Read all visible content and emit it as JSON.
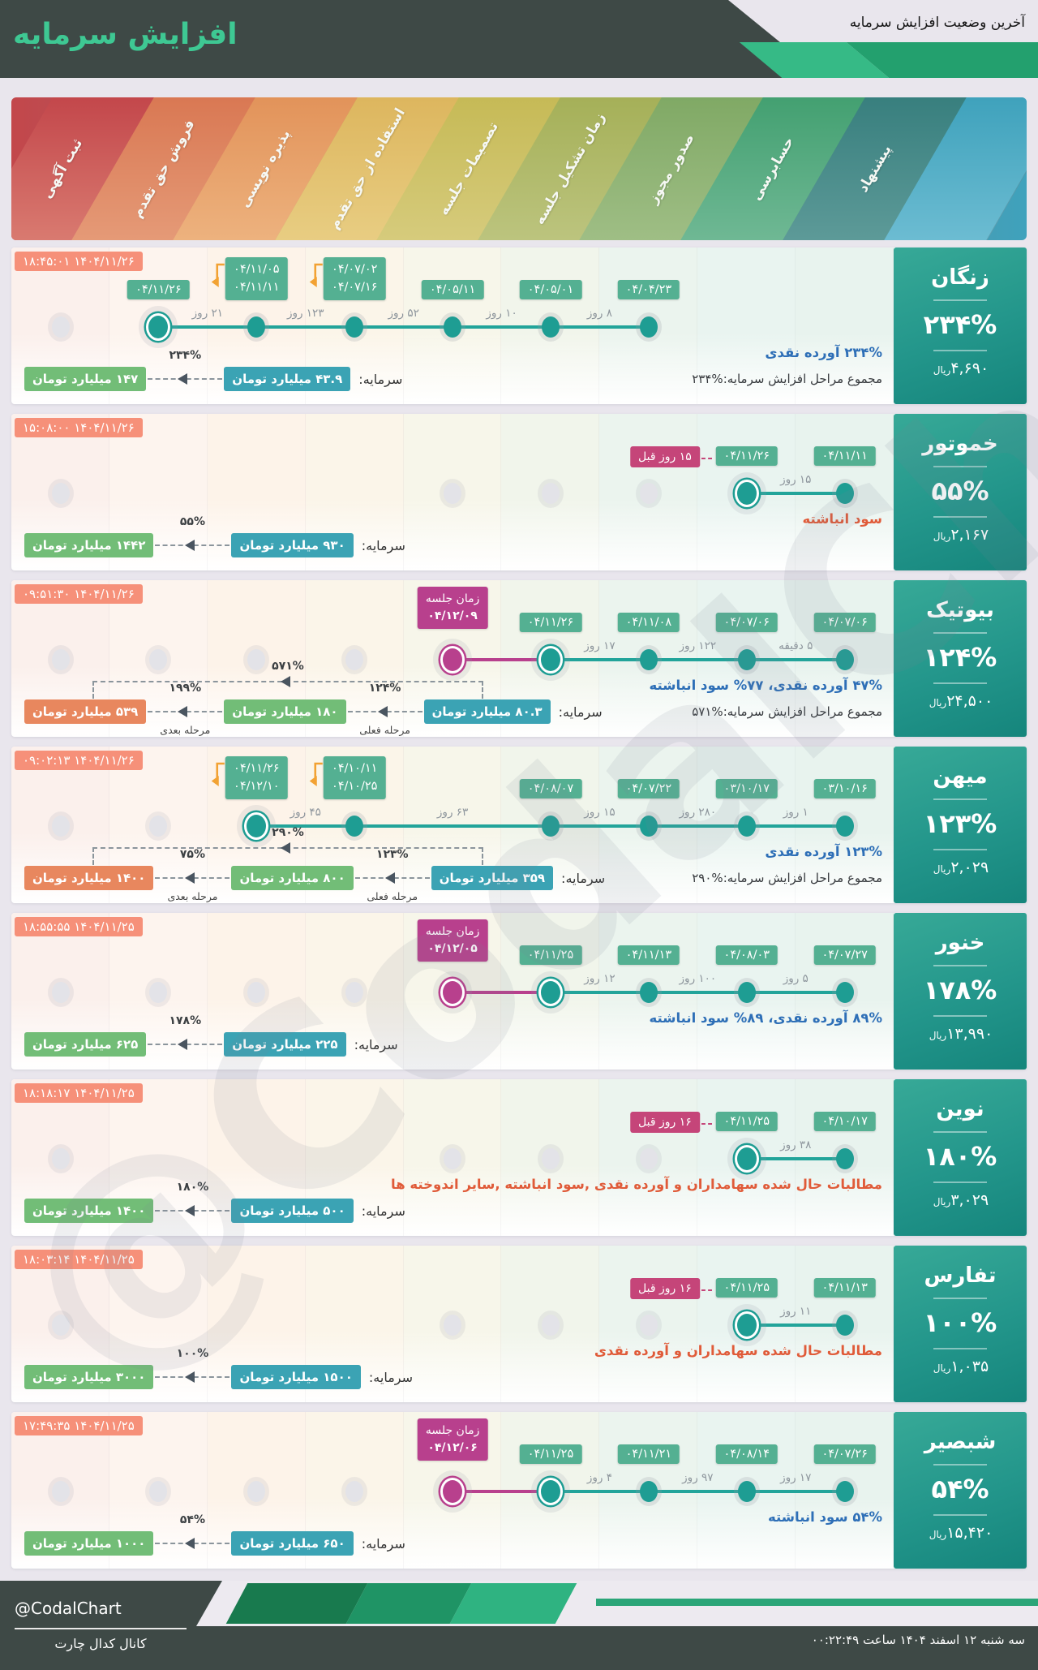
{
  "header": {
    "brand_title": "افزایش سرمایه",
    "page_title": "آخرین وضعیت افزایش سرمایه"
  },
  "watermark": "@CodalChart",
  "stages": [
    "ثبت آگهی",
    "فروش حق تقدم",
    "پذیره نویسی",
    "استفاده از حق تقدم",
    "تصمیمات جلسه",
    "زمان تشکیل جلسه",
    "صدور مجوز",
    "حسابرسی",
    "پیشنهاد",
    ""
  ],
  "labels": {
    "capital": "سرمایه:",
    "unit_billion": "میلیارد تومان",
    "stage_current": "مرحله فعلی",
    "stage_next": "مرحله بعدی",
    "total_prefix": "مجموع مراحل افزایش سرمایه:",
    "meeting": "زمان جلسه",
    "rial_unit": "ریال"
  },
  "companies": [
    {
      "name": "زنگان",
      "timestamp": "۱۴۰۴/۱۱/۲۶ ۱۸:۴۵:۰۱",
      "percent": "۲۳۴%",
      "rial": "۴,۶۹۰",
      "desc": {
        "text": "۲۳۴% آورده نقدی",
        "tone": "blue"
      },
      "total_pct": "۲۳۴%",
      "gray_cols": [
        1
      ],
      "meeting": null,
      "current": {
        "col": 2,
        "dates": [
          "۰۴/۱۱/۲۶"
        ],
        "ago": null
      },
      "nodes": [
        {
          "col": 3,
          "dates": [
            "۰۴/۱۱/۰۵",
            "۰۴/۱۱/۱۱"
          ]
        },
        {
          "col": 4,
          "dates": [
            "۰۴/۰۷/۰۲",
            "۰۴/۰۷/۱۶"
          ]
        },
        {
          "col": 5,
          "dates": [
            "۰۴/۰۵/۱۱"
          ]
        },
        {
          "col": 6,
          "dates": [
            "۰۴/۰۵/۰۱"
          ]
        },
        {
          "col": 7,
          "dates": [
            "۰۴/۰۴/۲۳"
          ]
        }
      ],
      "line": {
        "from": 2,
        "to": 7
      },
      "mline": null,
      "days": [
        [
          2,
          3,
          "۲۱ روز"
        ],
        [
          3,
          4,
          "۱۲۳ روز"
        ],
        [
          4,
          5,
          "۵۲ روز"
        ],
        [
          5,
          6,
          "۱۰ روز"
        ],
        [
          6,
          7,
          "۸ روز"
        ]
      ],
      "chain": {
        "type": "simple",
        "from": "۴۳.۹",
        "to": "۱۴۷",
        "pct": "۲۳۴%"
      }
    },
    {
      "name": "خموتور",
      "timestamp": "۱۴۰۴/۱۱/۲۶ ۱۵:۰۸:۰۰",
      "percent": "۵۵%",
      "rial": "۲,۱۶۷",
      "desc": {
        "text": "سود انباشته",
        "tone": "red"
      },
      "total_pct": null,
      "gray_cols": [
        1,
        5,
        6,
        7
      ],
      "meeting": null,
      "current": {
        "col": 8,
        "dates": [
          "۰۴/۱۱/۲۶"
        ],
        "ago": "۱۵ روز قبل"
      },
      "nodes": [
        {
          "col": 9,
          "dates": [
            "۰۴/۱۱/۱۱"
          ]
        }
      ],
      "line": {
        "from": 8,
        "to": 9
      },
      "mline": null,
      "days": [
        [
          8,
          9,
          "۱۵ روز"
        ]
      ],
      "chain": {
        "type": "simple",
        "from": "۹۳۰",
        "to": "۱۴۴۲",
        "pct": "۵۵%"
      }
    },
    {
      "name": "بیوتیک",
      "timestamp": "۱۴۰۴/۱۱/۲۶ ۰۹:۵۱:۳۰",
      "percent": "۱۲۴%",
      "rial": "۲۴,۵۰۰",
      "desc": {
        "text": "۴۷% آورده نقدی، ۷۷% سود انباشته",
        "tone": "blue"
      },
      "total_pct": "۵۷۱%",
      "gray_cols": [
        1,
        2,
        3,
        4
      ],
      "meeting": {
        "col": 5,
        "date": "۰۴/۱۲/۰۹"
      },
      "current": {
        "col": 6,
        "dates": [
          "۰۴/۱۱/۲۶"
        ],
        "ago": null
      },
      "nodes": [
        {
          "col": 7,
          "dates": [
            "۰۴/۱۱/۰۸"
          ]
        },
        {
          "col": 8,
          "dates": [
            "۰۴/۰۷/۰۶"
          ]
        },
        {
          "col": 9,
          "dates": [
            "۰۴/۰۷/۰۶"
          ]
        }
      ],
      "line": {
        "from": 6,
        "to": 9
      },
      "mline": {
        "from": 5,
        "to": 6
      },
      "days": [
        [
          6,
          7,
          "۱۷ روز"
        ],
        [
          7,
          8,
          "۱۲۲ روز"
        ],
        [
          8,
          9,
          "۵ دقیقه"
        ]
      ],
      "chain": {
        "type": "triple",
        "from": "۸۰.۳",
        "mid": "۱۸۰",
        "to": "۵۳۹",
        "pct1": "۱۲۴%",
        "pct2": "۱۹۹%",
        "overall": "۵۷۱%"
      }
    },
    {
      "name": "میهن",
      "timestamp": "۱۴۰۴/۱۱/۲۶ ۰۹:۰۲:۱۳",
      "percent": "۱۲۳%",
      "rial": "۲,۰۲۹",
      "desc": {
        "text": "۱۲۳% آورده نقدی",
        "tone": "blue"
      },
      "total_pct": "۲۹۰%",
      "gray_cols": [
        1,
        2
      ],
      "meeting": null,
      "current": {
        "col": 3,
        "dates": [
          "۰۴/۱۱/۲۶",
          "۰۴/۱۲/۱۰"
        ],
        "ago": null
      },
      "nodes": [
        {
          "col": 4,
          "dates": [
            "۰۴/۱۰/۱۱",
            "۰۴/۱۰/۲۵"
          ]
        },
        {
          "col": 6,
          "dates": [
            "۰۴/۰۸/۰۷"
          ]
        },
        {
          "col": 7,
          "dates": [
            "۰۴/۰۷/۲۲"
          ]
        },
        {
          "col": 8,
          "dates": [
            "۰۳/۱۰/۱۷"
          ]
        },
        {
          "col": 9,
          "dates": [
            "۰۳/۱۰/۱۶"
          ]
        }
      ],
      "line": {
        "from": 3,
        "to": 9
      },
      "mline": null,
      "days": [
        [
          3,
          4,
          "۴۵ روز"
        ],
        [
          4,
          6,
          "۶۳ روز"
        ],
        [
          6,
          7,
          "۱۵ روز"
        ],
        [
          7,
          8,
          "۲۸۰ روز"
        ],
        [
          8,
          9,
          "۱ روز"
        ]
      ],
      "chain": {
        "type": "triple",
        "from": "۳۵۹",
        "mid": "۸۰۰",
        "to": "۱۴۰۰",
        "pct1": "۱۲۳%",
        "pct2": "۷۵%",
        "overall": "۲۹۰%"
      }
    },
    {
      "name": "خنور",
      "timestamp": "۱۴۰۴/۱۱/۲۵ ۱۸:۵۵:۵۵",
      "percent": "۱۷۸%",
      "rial": "۱۳,۹۹۰",
      "desc": {
        "text": "۸۹% آورده نقدی، ۸۹% سود انباشته",
        "tone": "blue"
      },
      "total_pct": null,
      "gray_cols": [
        1,
        2,
        3,
        4
      ],
      "meeting": {
        "col": 5,
        "date": "۰۴/۱۲/۰۵"
      },
      "current": {
        "col": 6,
        "dates": [
          "۰۴/۱۱/۲۵"
        ],
        "ago": null
      },
      "nodes": [
        {
          "col": 7,
          "dates": [
            "۰۴/۱۱/۱۳"
          ]
        },
        {
          "col": 8,
          "dates": [
            "۰۴/۰۸/۰۳"
          ]
        },
        {
          "col": 9,
          "dates": [
            "۰۴/۰۷/۲۷"
          ]
        }
      ],
      "line": {
        "from": 6,
        "to": 9
      },
      "mline": {
        "from": 5,
        "to": 6
      },
      "days": [
        [
          6,
          7,
          "۱۲ روز"
        ],
        [
          7,
          8,
          "۱۰۰ روز"
        ],
        [
          8,
          9,
          "۵ روز"
        ]
      ],
      "chain": {
        "type": "simple",
        "from": "۲۲۵",
        "to": "۶۲۵",
        "pct": "۱۷۸%"
      }
    },
    {
      "name": "نوین",
      "timestamp": "۱۴۰۴/۱۱/۲۵ ۱۸:۱۸:۱۷",
      "percent": "۱۸۰%",
      "rial": "۳,۰۲۹",
      "desc": {
        "text": "مطالبات حال شده سهامداران و آورده نقدی ,سود انباشته ,سایر اندوخته ها",
        "tone": "red"
      },
      "total_pct": null,
      "gray_cols": [
        1,
        5,
        6,
        7
      ],
      "meeting": null,
      "current": {
        "col": 8,
        "dates": [
          "۰۴/۱۱/۲۵"
        ],
        "ago": "۱۶ روز قبل"
      },
      "nodes": [
        {
          "col": 9,
          "dates": [
            "۰۴/۱۰/۱۷"
          ]
        }
      ],
      "line": {
        "from": 8,
        "to": 9
      },
      "mline": null,
      "days": [
        [
          8,
          9,
          "۳۸ روز"
        ]
      ],
      "chain": {
        "type": "simple",
        "from": "۵۰۰",
        "to": "۱۴۰۰",
        "pct": "۱۸۰%"
      }
    },
    {
      "name": "تفارس",
      "timestamp": "۱۴۰۴/۱۱/۲۵ ۱۸:۰۳:۱۴",
      "percent": "۱۰۰%",
      "rial": "۱,۰۳۵",
      "desc": {
        "text": "مطالبات حال شده سهامداران و آورده نقدی",
        "tone": "red"
      },
      "total_pct": null,
      "gray_cols": [
        1,
        5,
        6,
        7
      ],
      "meeting": null,
      "current": {
        "col": 8,
        "dates": [
          "۰۴/۱۱/۲۵"
        ],
        "ago": "۱۶ روز قبل"
      },
      "nodes": [
        {
          "col": 9,
          "dates": [
            "۰۴/۱۱/۱۳"
          ]
        }
      ],
      "line": {
        "from": 8,
        "to": 9
      },
      "mline": null,
      "days": [
        [
          8,
          9,
          "۱۱ روز"
        ]
      ],
      "chain": {
        "type": "simple",
        "from": "۱۵۰۰",
        "to": "۳۰۰۰",
        "pct": "۱۰۰%"
      }
    },
    {
      "name": "شبصیر",
      "timestamp": "۱۴۰۴/۱۱/۲۵ ۱۷:۴۹:۳۵",
      "percent": "۵۴%",
      "rial": "۱۵,۴۲۰",
      "desc": {
        "text": "۵۴% سود انباشته",
        "tone": "blue"
      },
      "total_pct": null,
      "gray_cols": [
        1,
        2,
        3,
        4
      ],
      "meeting": {
        "col": 5,
        "date": "۰۴/۱۲/۰۶"
      },
      "current": {
        "col": 6,
        "dates": [
          "۰۴/۱۱/۲۵"
        ],
        "ago": null
      },
      "nodes": [
        {
          "col": 7,
          "dates": [
            "۰۴/۱۱/۲۱"
          ]
        },
        {
          "col": 8,
          "dates": [
            "۰۴/۰۸/۱۴"
          ]
        },
        {
          "col": 9,
          "dates": [
            "۰۴/۰۷/۲۶"
          ]
        }
      ],
      "line": {
        "from": 6,
        "to": 9
      },
      "mline": {
        "from": 5,
        "to": 6
      },
      "days": [
        [
          6,
          7,
          "۴ روز"
        ],
        [
          7,
          8,
          "۹۷ روز"
        ],
        [
          8,
          9,
          "۱۷ روز"
        ]
      ],
      "chain": {
        "type": "simple",
        "from": "۶۵۰",
        "to": "۱۰۰۰",
        "pct": "۵۴%"
      }
    }
  ],
  "footer": {
    "handle": "@CodalChart",
    "channel": "کانال کدال چارت",
    "datetime": "سه شنبه ۱۲ اسفند ۱۴۰۴ ساعت ۰۰:۲۲:۴۹"
  },
  "colors": {
    "accent_teal": "#1e9d93",
    "badge_green": "#54b092",
    "badge_salmon": "#f69079",
    "badge_magenta": "#b8408d",
    "badge_crimson": "#c54579",
    "box_blue": "#3ba3b4",
    "box_green": "#72bd77",
    "box_orange": "#e8875e",
    "desc_blue": "#2e6fb7",
    "desc_red": "#e05b39",
    "elbow_orange": "#f2a233",
    "stage_colors": [
      [
        "#c3474b",
        "#d97a70"
      ],
      [
        "#d97853",
        "#e59a77"
      ],
      [
        "#e2935a",
        "#edb27e"
      ],
      [
        "#ddb65e",
        "#e8cd82"
      ],
      [
        "#c6ba56",
        "#d6cb7c"
      ],
      [
        "#a5b058",
        "#bcc47e"
      ],
      [
        "#80a965",
        "#9fbe85"
      ],
      [
        "#43a071",
        "#6fb894"
      ],
      [
        "#387f7e",
        "#5d9a98"
      ],
      [
        "#3fa2bc",
        "#6cbcd2"
      ]
    ],
    "columns": [
      "#fbf0ec",
      "#fdf4ee",
      "#fdf3e9",
      "#fbf5e9",
      "#f7f6ea",
      "#f1f5eb",
      "#ebf4ee",
      "#e9f4f0",
      "#e8f3ee"
    ]
  }
}
